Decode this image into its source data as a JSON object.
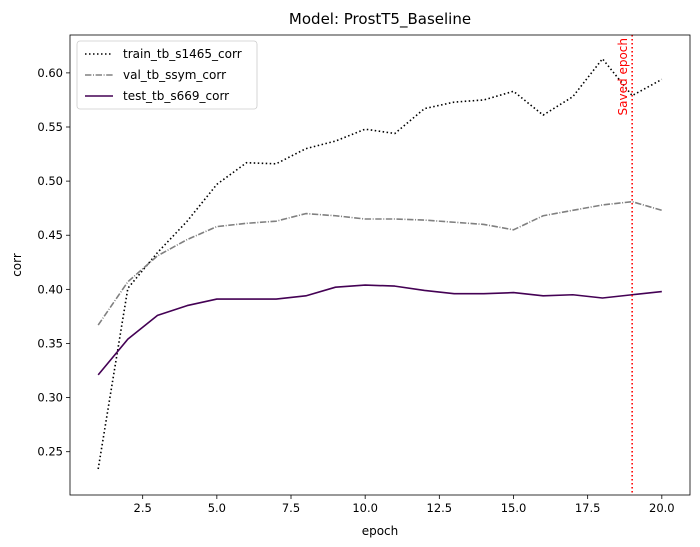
{
  "chart_data": {
    "type": "line",
    "title": "Model: ProstT5_Baseline",
    "xlabel": "epoch",
    "ylabel": "corr",
    "xlim": [
      0.05,
      20.95
    ],
    "ylim": [
      0.21,
      0.635
    ],
    "xticks": [
      2.5,
      5.0,
      7.5,
      10.0,
      12.5,
      15.0,
      17.5,
      20.0
    ],
    "xtick_labels": [
      "2.5",
      "5.0",
      "7.5",
      "10.0",
      "12.5",
      "15.0",
      "17.5",
      "20.0"
    ],
    "yticks": [
      0.25,
      0.3,
      0.35,
      0.4,
      0.45,
      0.5,
      0.55,
      0.6
    ],
    "ytick_labels": [
      "0.25",
      "0.30",
      "0.35",
      "0.40",
      "0.45",
      "0.50",
      "0.55",
      "0.60"
    ],
    "grid": false,
    "legend_position": "top-left",
    "x": [
      1,
      2,
      3,
      4,
      5,
      6,
      7,
      8,
      9,
      10,
      11,
      12,
      13,
      14,
      15,
      16,
      17,
      18,
      19,
      20
    ],
    "series": [
      {
        "name": "train_tb_s1465_corr",
        "color": "#000000",
        "dash": "dotted",
        "values": [
          0.234,
          0.401,
          0.434,
          0.463,
          0.497,
          0.517,
          0.516,
          0.53,
          0.537,
          0.548,
          0.544,
          0.567,
          0.573,
          0.575,
          0.583,
          0.561,
          0.578,
          0.613,
          0.579,
          0.594
        ]
      },
      {
        "name": "val_tb_ssym_corr",
        "color": "#808080",
        "dash": "dashdot",
        "values": [
          0.367,
          0.407,
          0.431,
          0.446,
          0.458,
          0.461,
          0.463,
          0.47,
          0.468,
          0.465,
          0.465,
          0.464,
          0.462,
          0.46,
          0.455,
          0.468,
          0.473,
          0.478,
          0.481,
          0.473
        ]
      },
      {
        "name": "test_tb_s669_corr",
        "color": "#440154",
        "dash": "solid",
        "values": [
          0.321,
          0.354,
          0.376,
          0.385,
          0.391,
          0.391,
          0.391,
          0.394,
          0.402,
          0.404,
          0.403,
          0.399,
          0.396,
          0.396,
          0.397,
          0.394,
          0.395,
          0.392,
          0.395,
          0.398
        ]
      }
    ],
    "annotations": [
      {
        "type": "vline",
        "x": 19,
        "color": "#ff0000",
        "dash": "dotted",
        "label": "Saved epoch"
      }
    ]
  }
}
